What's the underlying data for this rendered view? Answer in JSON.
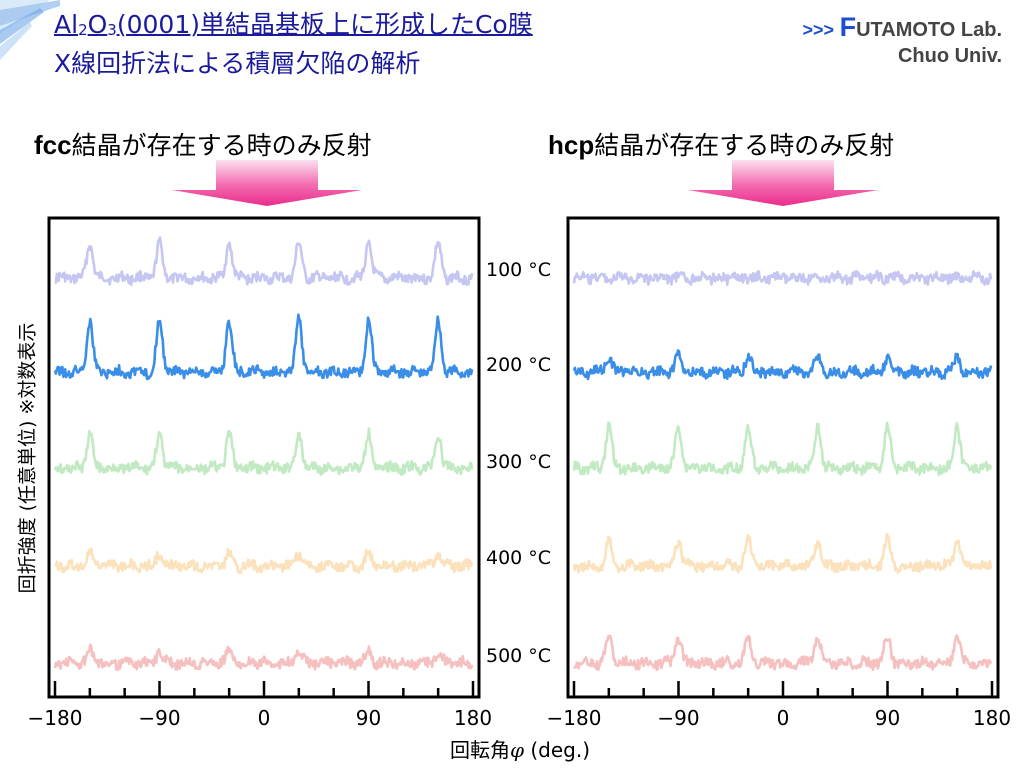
{
  "title": {
    "line1_parts": [
      "Al",
      "2",
      "O",
      "3",
      "(0001)単結晶基板上に形成したCo膜"
    ],
    "line2": "X線回折法による積層欠陥の解析"
  },
  "lab": {
    "arrows": ">>>",
    "first_letter": "F",
    "name_rest": "UTAMOTO Lab.",
    "university": "Chuo Univ."
  },
  "colors": {
    "title": "#1a1a9a",
    "arrow": "#ee2e8e",
    "lab_accent": "#1e4fd0"
  },
  "icons": [
    "header-arrow-icon",
    "corner-decoration-icon"
  ],
  "chart_data": [
    {
      "type": "line",
      "panel": "fcc",
      "header_bold": "fcc",
      "header_text": "結晶が存在する時のみ反射",
      "xlabel": "回転角φ (deg.)",
      "ylabel": "回折強度 (任意単位) ※対数表示",
      "xlim": [
        -180,
        180
      ],
      "xticks": [
        -180,
        -90,
        0,
        90,
        180
      ],
      "xtick_labels": [
        "−180",
        "−90",
        "0",
        "90",
        "180"
      ],
      "y_scale": "log (arbitrary units, curves offset)",
      "series": [
        {
          "name": "100 °C",
          "color": "#c6c6f2",
          "peak_positions": [
            -150,
            -90,
            -30,
            30,
            90,
            150
          ],
          "peak_heights": [
            0.75,
            0.75,
            0.75,
            0.75,
            0.75,
            0.75
          ]
        },
        {
          "name": "200 °C",
          "color": "#3a8ee8",
          "peak_positions": [
            -150,
            -90,
            -30,
            30,
            90,
            150
          ],
          "peak_heights": [
            1.0,
            1.0,
            1.0,
            1.0,
            1.0,
            1.0
          ]
        },
        {
          "name": "300 °C",
          "color": "#c2eac2",
          "peak_positions": [
            -150,
            -90,
            -30,
            30,
            90,
            150
          ],
          "peak_heights": [
            0.8,
            0.8,
            0.8,
            0.8,
            0.8,
            0.8
          ]
        },
        {
          "name": "400 °C",
          "color": "#fbe2bc",
          "peak_positions": [
            -150,
            -90,
            -30,
            30,
            90,
            150
          ],
          "peak_heights": [
            0.5,
            0.5,
            0.5,
            0.5,
            0.5,
            0.5
          ]
        },
        {
          "name": "500 °C",
          "color": "#f6c0c0",
          "peak_positions": [
            -150,
            -90,
            -30,
            30,
            90,
            150
          ],
          "peak_heights": [
            0.45,
            0.45,
            0.45,
            0.45,
            0.45,
            0.45
          ]
        }
      ]
    },
    {
      "type": "line",
      "panel": "hcp",
      "header_bold": "hcp",
      "header_text": "結晶が存在する時のみ反射",
      "xlim": [
        -180,
        180
      ],
      "xticks": [
        -180,
        -90,
        0,
        90,
        180
      ],
      "xtick_labels": [
        "−180",
        "−90",
        "0",
        "90",
        "180"
      ],
      "series": [
        {
          "name": "100 °C",
          "color": "#c6c6f2",
          "peak_positions": [],
          "peak_heights": []
        },
        {
          "name": "200 °C",
          "color": "#3a8ee8",
          "peak_positions": [
            -150,
            -90,
            -30,
            30,
            90,
            150
          ],
          "peak_heights": [
            0.3,
            0.3,
            0.3,
            0.3,
            0.3,
            0.3
          ]
        },
        {
          "name": "300 °C",
          "color": "#c2eac2",
          "peak_positions": [
            -150,
            -90,
            -30,
            30,
            90,
            150
          ],
          "peak_heights": [
            1.0,
            1.0,
            1.0,
            1.0,
            1.0,
            1.0
          ]
        },
        {
          "name": "400 °C",
          "color": "#fbe2bc",
          "peak_positions": [
            -150,
            -90,
            -30,
            30,
            90,
            150
          ],
          "peak_heights": [
            1.0,
            1.0,
            1.0,
            1.0,
            1.0,
            1.0
          ]
        },
        {
          "name": "500 °C",
          "color": "#f6c0c0",
          "peak_positions": [
            -150,
            -90,
            -30,
            30,
            90,
            150
          ],
          "peak_heights": [
            1.0,
            1.0,
            1.0,
            1.0,
            1.0,
            1.0
          ]
        }
      ]
    }
  ]
}
